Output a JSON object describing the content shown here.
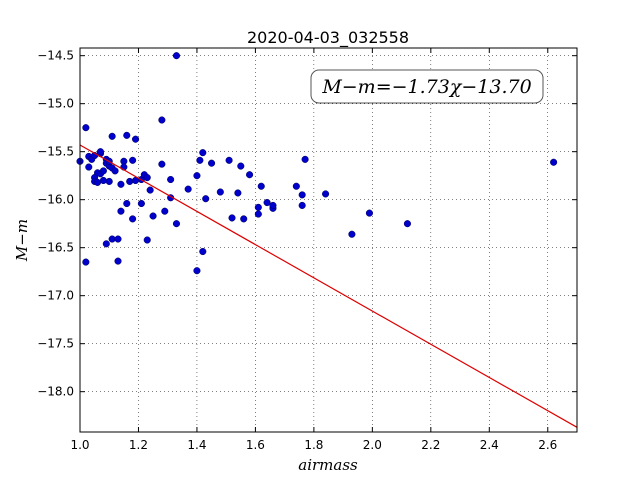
{
  "chart_data": {
    "type": "scatter",
    "title": "2020-04-03_032558",
    "xlabel": "airmass",
    "ylabel": "M−m",
    "xlim": [
      1.0,
      2.7
    ],
    "ylim": [
      -18.42,
      -14.42
    ],
    "grid": true,
    "y_inverted": true,
    "x_ticks": [
      "1.0",
      "1.2",
      "1.4",
      "1.6",
      "1.8",
      "2.0",
      "2.2",
      "2.4",
      "2.6"
    ],
    "y_ticks": [
      "−14.5",
      "−15.0",
      "−15.5",
      "−16.0",
      "−16.5",
      "−17.0",
      "−17.5",
      "−18.0"
    ],
    "annotation": "M−m=−1.73χ−13.70",
    "marker_color": "#0000cc",
    "fit_color": "#dd0000",
    "fit_line": {
      "slope": -1.73,
      "intercept": -13.7,
      "x": [
        1.0,
        2.7
      ]
    },
    "series": [
      {
        "points": [
          [
            1.0,
            -15.6
          ],
          [
            1.02,
            -15.25
          ],
          [
            1.02,
            -16.65
          ],
          [
            1.03,
            -15.66
          ],
          [
            1.03,
            -15.55
          ],
          [
            1.04,
            -15.58
          ],
          [
            1.05,
            -15.54
          ],
          [
            1.05,
            -15.77
          ],
          [
            1.05,
            -15.81
          ],
          [
            1.06,
            -15.72
          ],
          [
            1.06,
            -15.82
          ],
          [
            1.07,
            -15.73
          ],
          [
            1.07,
            -15.52
          ],
          [
            1.07,
            -15.5
          ],
          [
            1.08,
            -15.7
          ],
          [
            1.08,
            -15.8
          ],
          [
            1.09,
            -15.58
          ],
          [
            1.09,
            -15.62
          ],
          [
            1.09,
            -16.46
          ],
          [
            1.1,
            -15.65
          ],
          [
            1.1,
            -15.6
          ],
          [
            1.1,
            -15.81
          ],
          [
            1.11,
            -15.34
          ],
          [
            1.11,
            -15.67
          ],
          [
            1.11,
            -16.41
          ],
          [
            1.12,
            -15.7
          ],
          [
            1.13,
            -16.41
          ],
          [
            1.13,
            -16.64
          ],
          [
            1.14,
            -16.12
          ],
          [
            1.14,
            -15.84
          ],
          [
            1.15,
            -15.6
          ],
          [
            1.15,
            -15.66
          ],
          [
            1.16,
            -16.04
          ],
          [
            1.16,
            -15.33
          ],
          [
            1.17,
            -15.81
          ],
          [
            1.18,
            -15.59
          ],
          [
            1.18,
            -16.2
          ],
          [
            1.19,
            -15.37
          ],
          [
            1.19,
            -15.8
          ],
          [
            1.21,
            -16.04
          ],
          [
            1.21,
            -15.79
          ],
          [
            1.22,
            -15.74
          ],
          [
            1.23,
            -16.42
          ],
          [
            1.23,
            -15.77
          ],
          [
            1.24,
            -15.9
          ],
          [
            1.25,
            -16.17
          ],
          [
            1.28,
            -15.17
          ],
          [
            1.28,
            -15.63
          ],
          [
            1.29,
            -16.12
          ],
          [
            1.31,
            -15.79
          ],
          [
            1.31,
            -15.98
          ],
          [
            1.33,
            -14.5
          ],
          [
            1.33,
            -16.25
          ],
          [
            1.37,
            -15.89
          ],
          [
            1.4,
            -15.75
          ],
          [
            1.4,
            -16.74
          ],
          [
            1.41,
            -15.59
          ],
          [
            1.42,
            -15.51
          ],
          [
            1.42,
            -16.54
          ],
          [
            1.43,
            -15.99
          ],
          [
            1.45,
            -15.62
          ],
          [
            1.48,
            -15.92
          ],
          [
            1.51,
            -15.59
          ],
          [
            1.52,
            -16.19
          ],
          [
            1.54,
            -15.93
          ],
          [
            1.55,
            -15.65
          ],
          [
            1.56,
            -16.2
          ],
          [
            1.58,
            -15.74
          ],
          [
            1.61,
            -16.08
          ],
          [
            1.61,
            -16.15
          ],
          [
            1.62,
            -15.86
          ],
          [
            1.64,
            -16.03
          ],
          [
            1.66,
            -16.09
          ],
          [
            1.66,
            -16.06
          ],
          [
            1.74,
            -15.86
          ],
          [
            1.76,
            -16.06
          ],
          [
            1.76,
            -15.95
          ],
          [
            1.77,
            -15.58
          ],
          [
            1.84,
            -15.94
          ],
          [
            1.93,
            -16.36
          ],
          [
            1.99,
            -16.14
          ],
          [
            2.12,
            -16.25
          ],
          [
            2.62,
            -15.61
          ]
        ]
      }
    ]
  }
}
